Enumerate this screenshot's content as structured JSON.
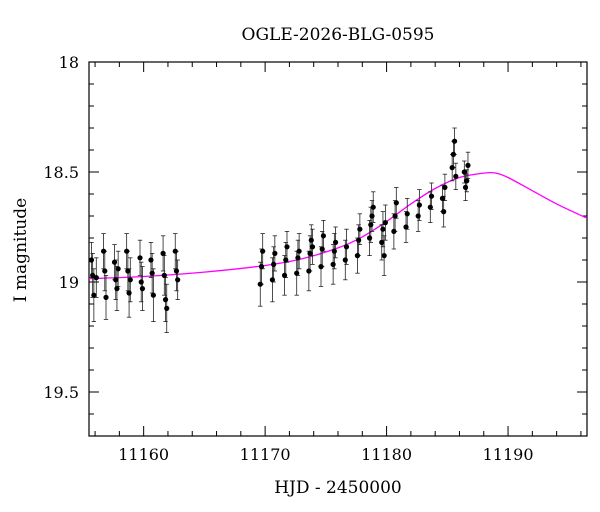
{
  "chart_data": {
    "type": "scatter",
    "title": "OGLE-2026-BLG-0595",
    "xlabel": "HJD - 2450000",
    "ylabel": "I magnitude",
    "xlim": [
      11155.5,
      11196.5
    ],
    "ylim": [
      19.7,
      18.0
    ],
    "y_inverted": true,
    "grid": false,
    "x_ticks": [
      11160,
      11170,
      11180,
      11190
    ],
    "x_tick_labels": [
      "11160",
      "11170",
      "11180",
      "11190"
    ],
    "y_ticks": [
      18.0,
      18.5,
      19.0,
      19.5
    ],
    "y_tick_labels": [
      "18",
      "18.5",
      "19",
      "19.5"
    ],
    "colors": {
      "model": "#ff00ff",
      "points": "#000000",
      "frame": "#000000"
    },
    "series": [
      {
        "kind": "points_with_errorbars",
        "points": [
          [
            11155.7,
            18.9,
            0.08
          ],
          [
            11155.8,
            18.97,
            0.1
          ],
          [
            11155.9,
            19.06,
            0.12
          ],
          [
            11156.1,
            18.98,
            0.09
          ],
          [
            11156.7,
            18.86,
            0.08
          ],
          [
            11156.8,
            18.95,
            0.09
          ],
          [
            11156.9,
            19.07,
            0.1
          ],
          [
            11157.6,
            18.91,
            0.08
          ],
          [
            11157.7,
            18.99,
            0.09
          ],
          [
            11157.8,
            19.03,
            0.1
          ],
          [
            11157.9,
            18.94,
            0.08
          ],
          [
            11158.6,
            18.86,
            0.08
          ],
          [
            11158.7,
            18.95,
            0.09
          ],
          [
            11158.8,
            19.05,
            0.11
          ],
          [
            11158.9,
            18.99,
            0.1
          ],
          [
            11159.7,
            18.89,
            0.08
          ],
          [
            11159.8,
            19.0,
            0.09
          ],
          [
            11159.9,
            19.03,
            0.1
          ],
          [
            11160.6,
            18.9,
            0.08
          ],
          [
            11160.7,
            18.96,
            0.09
          ],
          [
            11160.8,
            19.06,
            0.12
          ],
          [
            11161.6,
            18.87,
            0.08
          ],
          [
            11161.7,
            18.97,
            0.09
          ],
          [
            11161.8,
            19.08,
            0.1
          ],
          [
            11161.9,
            19.12,
            0.11
          ],
          [
            11162.6,
            18.86,
            0.08
          ],
          [
            11162.7,
            18.95,
            0.09
          ],
          [
            11162.8,
            18.99,
            0.09
          ],
          [
            11169.6,
            19.01,
            0.1
          ],
          [
            11169.7,
            18.93,
            0.08
          ],
          [
            11169.8,
            18.86,
            0.08
          ],
          [
            11170.6,
            18.99,
            0.1
          ],
          [
            11170.7,
            18.92,
            0.08
          ],
          [
            11170.8,
            18.87,
            0.08
          ],
          [
            11171.6,
            18.97,
            0.09
          ],
          [
            11171.7,
            18.9,
            0.08
          ],
          [
            11171.8,
            18.84,
            0.07
          ],
          [
            11172.6,
            18.96,
            0.1
          ],
          [
            11172.7,
            18.89,
            0.08
          ],
          [
            11172.8,
            18.86,
            0.08
          ],
          [
            11173.6,
            18.95,
            0.09
          ],
          [
            11173.7,
            18.87,
            0.08
          ],
          [
            11173.8,
            18.81,
            0.07
          ],
          [
            11173.9,
            18.84,
            0.08
          ],
          [
            11174.6,
            18.93,
            0.09
          ],
          [
            11174.7,
            18.85,
            0.08
          ],
          [
            11174.8,
            18.79,
            0.07
          ],
          [
            11175.6,
            18.92,
            0.09
          ],
          [
            11175.7,
            18.86,
            0.08
          ],
          [
            11175.8,
            18.82,
            0.07
          ],
          [
            11176.6,
            18.9,
            0.09
          ],
          [
            11176.7,
            18.84,
            0.08
          ],
          [
            11177.6,
            18.88,
            0.08
          ],
          [
            11177.7,
            18.81,
            0.07
          ],
          [
            11177.8,
            18.76,
            0.07
          ],
          [
            11178.6,
            18.8,
            0.08
          ],
          [
            11178.7,
            18.74,
            0.08
          ],
          [
            11178.8,
            18.7,
            0.07
          ],
          [
            11178.9,
            18.66,
            0.07
          ],
          [
            11179.6,
            18.82,
            0.08
          ],
          [
            11179.7,
            18.76,
            0.08
          ],
          [
            11179.8,
            18.88,
            0.09
          ],
          [
            11179.9,
            18.73,
            0.08
          ],
          [
            11180.6,
            18.77,
            0.08
          ],
          [
            11180.7,
            18.7,
            0.07
          ],
          [
            11180.8,
            18.64,
            0.07
          ],
          [
            11181.6,
            18.75,
            0.07
          ],
          [
            11181.7,
            18.69,
            0.07
          ],
          [
            11182.6,
            18.7,
            0.07
          ],
          [
            11182.7,
            18.65,
            0.07
          ],
          [
            11183.6,
            18.66,
            0.07
          ],
          [
            11183.7,
            18.61,
            0.06
          ],
          [
            11184.6,
            18.62,
            0.06
          ],
          [
            11184.7,
            18.68,
            0.07
          ],
          [
            11184.8,
            18.57,
            0.06
          ],
          [
            11185.4,
            18.48,
            0.06
          ],
          [
            11185.5,
            18.42,
            0.06
          ],
          [
            11185.6,
            18.36,
            0.06
          ],
          [
            11185.7,
            18.52,
            0.06
          ],
          [
            11186.4,
            18.5,
            0.05
          ],
          [
            11186.5,
            18.57,
            0.06
          ],
          [
            11186.6,
            18.54,
            0.05
          ],
          [
            11186.7,
            18.47,
            0.06
          ]
        ]
      },
      {
        "kind": "model_curve",
        "points": [
          [
            11155.5,
            18.985
          ],
          [
            11160,
            18.975
          ],
          [
            11165,
            18.955
          ],
          [
            11170,
            18.925
          ],
          [
            11173,
            18.895
          ],
          [
            11176,
            18.845
          ],
          [
            11178,
            18.795
          ],
          [
            11180,
            18.725
          ],
          [
            11182,
            18.645
          ],
          [
            11184,
            18.575
          ],
          [
            11186,
            18.525
          ],
          [
            11188,
            18.505
          ],
          [
            11189,
            18.505
          ],
          [
            11190,
            18.525
          ],
          [
            11192,
            18.585
          ],
          [
            11194,
            18.645
          ],
          [
            11196.5,
            18.71
          ]
        ]
      }
    ]
  }
}
